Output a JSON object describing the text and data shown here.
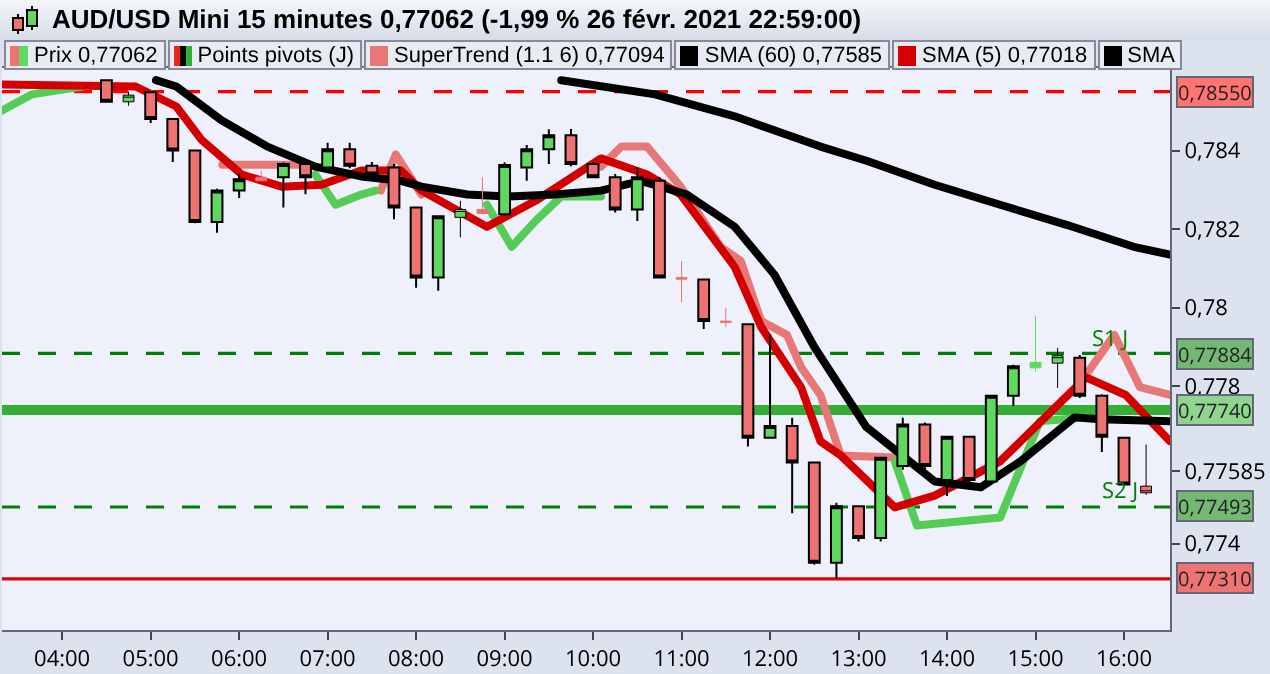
{
  "chart_data": {
    "type": "candlestick",
    "title": "AUD/USD Mini 15 minutes 0,77062 (-1,99 % 26 févr. 2021 22:59:00)",
    "x": [
      4.5,
      4.75,
      5,
      5.25,
      5.5,
      5.75,
      6,
      6.25,
      6.5,
      6.75,
      7,
      7.25,
      7.5,
      7.75,
      8,
      8.25,
      8.5,
      8.75,
      9,
      9.25,
      9.5,
      9.75,
      10,
      10.25,
      10.5,
      10.75,
      11,
      11.25,
      11.5,
      11.75,
      12,
      12.25,
      12.5,
      12.75,
      13,
      13.25,
      13.5,
      13.75,
      14,
      14.25,
      14.5,
      14.75,
      15,
      15.25,
      15.5,
      15.75,
      16,
      16.25
    ],
    "series": [
      {
        "name": "Prix 0,77062",
        "colors": [
          "#ee7272",
          "#5fd85f",
          "#ee7272",
          "#ee7272",
          "#ee7272",
          "#5fd85f",
          "#5fd85f",
          "#ee7272",
          "#5fd85f",
          "#ee7272",
          "#5fd85f",
          "#ee7272",
          "#ee7272",
          "#ee7272",
          "#ee7272",
          "#5fd85f",
          "#5fd85f",
          "#ee7272",
          "#5fd85f",
          "#5fd85f",
          "#5fd85f",
          "#ee7272",
          "#ee7272",
          "#ee7272",
          "#5fd85f",
          "#ee7272",
          "#ee7272",
          "#ee7272",
          "#ee7272",
          "#ee7272",
          "#5fd85f",
          "#ee7272",
          "#ee7272",
          "#5fd85f",
          "#ee7272",
          "#5fd85f",
          "#5fd85f",
          "#ee7272",
          "#5fd85f",
          "#ee7272",
          "#5fd85f",
          "#5fd85f",
          "#5fd85f",
          "#5fd85f",
          "#ee7272",
          "#ee7272",
          "#ee7272",
          "#ee7272"
        ],
        "ohlc": [
          [
            0.78579,
            0.7858,
            0.78524,
            0.78524
          ],
          [
            0.78524,
            0.7855,
            0.78514,
            0.78541
          ],
          [
            0.78548,
            0.7855,
            0.7847,
            0.7848
          ],
          [
            0.7848,
            0.7848,
            0.78371,
            0.784
          ],
          [
            0.784,
            0.784,
            0.78215,
            0.78218
          ],
          [
            0.78218,
            0.78303,
            0.78191,
            0.78298
          ],
          [
            0.78298,
            0.7834,
            0.78279,
            0.78327
          ],
          [
            0.78332,
            0.78349,
            0.78323,
            0.78323
          ],
          [
            0.78332,
            0.7837,
            0.78255,
            0.78366
          ],
          [
            0.78366,
            0.7837,
            0.78289,
            0.78332
          ],
          [
            0.78357,
            0.7842,
            0.78349,
            0.78403
          ],
          [
            0.78403,
            0.7842,
            0.78355,
            0.78361
          ],
          [
            0.78361,
            0.78371,
            0.78335,
            0.78339
          ],
          [
            0.78357,
            0.78366,
            0.78225,
            0.78255
          ],
          [
            0.78255,
            0.78255,
            0.78051,
            0.78077
          ],
          [
            0.78077,
            0.78233,
            0.78043,
            0.78233
          ],
          [
            0.7823,
            0.78272,
            0.78179,
            0.7825
          ],
          [
            0.7825,
            0.78332,
            0.78238,
            0.7824
          ],
          [
            0.78238,
            0.7837,
            0.78235,
            0.78363
          ],
          [
            0.78357,
            0.78414,
            0.78323,
            0.78403
          ],
          [
            0.78403,
            0.78454,
            0.78366,
            0.78439
          ],
          [
            0.78439,
            0.78455,
            0.7836,
            0.78366
          ],
          [
            0.78366,
            0.7837,
            0.7833,
            0.78332
          ],
          [
            0.78332,
            0.7834,
            0.78242,
            0.7825
          ],
          [
            0.7825,
            0.78357,
            0.78221,
            0.78332
          ],
          [
            0.78323,
            0.78332,
            0.78075,
            0.78077
          ],
          [
            0.78077,
            0.78119,
            0.78014,
            0.78073
          ],
          [
            0.78072,
            0.78072,
            0.77946,
            0.77966
          ],
          [
            0.77966,
            0.78,
            0.7795,
            0.77963
          ],
          [
            0.77958,
            0.77958,
            0.77647,
            0.77669
          ],
          [
            0.77669,
            0.77932,
            0.77669,
            0.77699
          ],
          [
            0.77699,
            0.7772,
            0.77477,
            0.77606
          ],
          [
            0.77606,
            0.77606,
            0.77346,
            0.77351
          ],
          [
            0.77351,
            0.77504,
            0.7731,
            0.77495
          ],
          [
            0.77495,
            0.77495,
            0.77405,
            0.77414
          ],
          [
            0.77414,
            0.77618,
            0.77405,
            0.77618
          ],
          [
            0.77597,
            0.7772,
            0.77588,
            0.77703
          ],
          [
            0.77703,
            0.77708,
            0.77585,
            0.77597
          ],
          [
            0.77562,
            0.77672,
            0.77521,
            0.77672
          ],
          [
            0.77672,
            0.77672,
            0.77545,
            0.77562
          ],
          [
            0.77558,
            0.77776,
            0.77555,
            0.77776
          ],
          [
            0.77776,
            0.77855,
            0.7775,
            0.77851
          ],
          [
            0.77847,
            0.7798,
            0.77838,
            0.77861
          ],
          [
            0.77859,
            0.77898,
            0.77796,
            0.77878
          ],
          [
            0.77873,
            0.7788,
            0.7777,
            0.77776
          ],
          [
            0.77776,
            0.7778,
            0.77633,
            0.77672
          ],
          [
            0.77669,
            0.77669,
            0.7755,
            0.7755
          ],
          [
            0.77546,
            0.77652,
            0.77524,
            0.77529
          ]
        ]
      },
      {
        "type": "line",
        "name": "SuperTrend (1.1 6) 0,77094",
        "color": "#e87878",
        "x": [
          5.81,
          6.77,
          6.8,
          7.6,
          7.77,
          8.06,
          8.1,
          10.09,
          10.32,
          10.61,
          10.99,
          11.44,
          11.67,
          11.9,
          12.19,
          12.35,
          12.57,
          12.8,
          13.41,
          13.45,
          15.57,
          15.89,
          16.18,
          16.52
        ],
        "values": [
          0.78364,
          0.78364,
          null,
          0.78298,
          0.7839,
          0.78288,
          null,
          0.78359,
          0.7841,
          0.7841,
          0.78308,
          0.78155,
          0.78119,
          0.77966,
          0.77931,
          0.77849,
          0.77778,
          0.77624,
          0.77619,
          null,
          0.77829,
          0.77931,
          0.77798,
          0.77778
        ]
      },
      {
        "type": "line",
        "color": "#55cc55",
        "x": [
          3.32,
          3.66,
          4.23,
          4.3,
          6.86,
          7.09,
          7.38,
          7.54,
          7.6,
          8.8,
          9.08,
          9.35,
          9.64,
          10.09,
          10.1,
          13.41,
          13.66,
          14.6,
          15.05,
          15.57
        ],
        "values": [
          0.78502,
          0.78543,
          0.78563,
          null,
          0.78339,
          0.78262,
          0.78288,
          0.78298,
          null,
          0.78262,
          0.78155,
          0.78221,
          0.78283,
          0.78283,
          null,
          0.77609,
          0.77446,
          0.77466,
          0.77711,
          0.77721
        ]
      },
      {
        "type": "line",
        "name": "SMA (60) 0,77585",
        "color": "#000000",
        "x": [
          9.64,
          10.7,
          11.6,
          12.57,
          13.09,
          13.86,
          14.6,
          15.35,
          16.11,
          16.52
        ],
        "values": [
          0.78579,
          0.78543,
          0.78487,
          0.7841,
          0.78374,
          0.78313,
          0.78262,
          0.78211,
          0.78155,
          0.78135
        ]
      },
      {
        "type": "line",
        "name": "SMA (5) 0,77018",
        "color": "#d40000",
        "x": [
          3.32,
          4.83,
          5.29,
          5.58,
          6.03,
          6.48,
          6.93,
          7.38,
          7.83,
          8.06,
          8.8,
          9.35,
          10.09,
          10.61,
          10.99,
          11.6,
          11.9,
          12.35,
          12.57,
          12.8,
          13.41,
          13.86,
          14.6,
          15.57,
          16.02,
          16.52
        ],
        "values": [
          0.78568,
          0.78563,
          0.78512,
          0.78426,
          0.78339,
          0.78308,
          0.78313,
          0.78349,
          0.78349,
          0.78298,
          0.78206,
          0.78272,
          0.7838,
          0.78339,
          0.78288,
          0.78104,
          0.77951,
          0.77798,
          0.7766,
          0.77624,
          0.77492,
          0.77522,
          0.77609,
          0.77823,
          0.77778,
          0.7766
        ]
      },
      {
        "type": "line",
        "name": "SMA",
        "color": "#000000",
        "x": [
          5.06,
          5.29,
          5.8,
          6.32,
          6.86,
          7.38,
          7.83,
          8.06,
          8.58,
          9.03,
          9.57,
          10.09,
          10.54,
          11.06,
          11.6,
          12.05,
          12.5,
          13.09,
          13.86,
          14.38,
          14.83,
          15.44,
          15.73,
          16.52
        ],
        "values": [
          0.78579,
          0.78563,
          0.78477,
          0.7841,
          0.78359,
          0.78334,
          0.78323,
          0.78308,
          0.78288,
          0.78283,
          0.78288,
          0.78298,
          0.78323,
          0.78288,
          0.78206,
          0.78084,
          0.779,
          0.77696,
          0.77558,
          0.77543,
          0.77609,
          0.77721,
          0.77716,
          0.77711
        ]
      }
    ],
    "xlim": [
      3.32,
      16.52
    ],
    "xticks": [
      {
        "value": 4,
        "label": "04:00"
      },
      {
        "value": 5,
        "label": "05:00"
      },
      {
        "value": 6,
        "label": "06:00"
      },
      {
        "value": 7,
        "label": "07:00"
      },
      {
        "value": 8,
        "label": "08:00"
      },
      {
        "value": 9,
        "label": "09:00"
      },
      {
        "value": 10,
        "label": "10:00"
      },
      {
        "value": 11,
        "label": "11:00"
      },
      {
        "value": 12,
        "label": "12:00"
      },
      {
        "value": 13,
        "label": "13:00"
      },
      {
        "value": 14,
        "label": "14:00"
      },
      {
        "value": 15,
        "label": "15:00"
      },
      {
        "value": 16,
        "label": "16:00"
      }
    ],
    "ylim": [
      0.7718,
      0.7861
    ],
    "yticks": [
      {
        "value": 0.774,
        "label": "0,774"
      },
      {
        "value": 0.77585,
        "label": "0,77585"
      },
      {
        "value": 0.778,
        "label": "0,778"
      },
      {
        "value": 0.78,
        "label": "0,78"
      },
      {
        "value": 0.782,
        "label": "0,782"
      },
      {
        "value": 0.784,
        "label": "0,784"
      }
    ],
    "ref_lines": [
      {
        "axis": "y",
        "value": 0.7855,
        "label": "0,78550",
        "color": "#ff0000",
        "line_style": "dashed"
      },
      {
        "axis": "y",
        "value": 0.77884,
        "label": "0,77884",
        "color": "#008000",
        "line_style": "dashed"
      },
      {
        "axis": "y",
        "value": 0.7774,
        "label": "0,77740",
        "color": "#33b033",
        "line_style": "solid"
      },
      {
        "axis": "y",
        "value": 0.77493,
        "label": "0,77493",
        "color": "#008000",
        "line_style": "dashed"
      },
      {
        "axis": "y",
        "value": 0.7731,
        "label": "0,77310",
        "color": "#e00000",
        "line_style": "solid"
      }
    ],
    "annotations": [
      "Points pivots (J)",
      {
        "text": "S1 J",
        "x": 15.85,
        "y": 0.7792
      },
      {
        "text": "S2 J",
        "x": 15.95,
        "y": 0.77533
      }
    ],
    "legend": "top"
  }
}
